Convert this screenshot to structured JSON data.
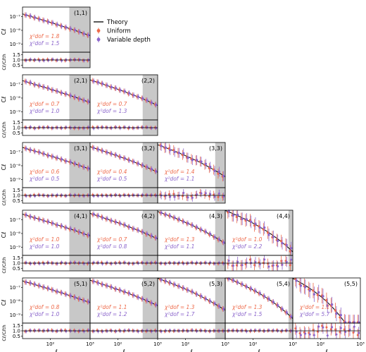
{
  "chart_data": {
    "type": "scatter",
    "x_scale": "log",
    "xlabel": "ℓ",
    "ylabel_top": "Cℓ",
    "ylabel_ratio": "Cℓ/Cℓth",
    "x_ticks": [
      "10²",
      "10³"
    ],
    "y_ticks_top": [
      "10⁻⁷",
      "10⁻⁸",
      "10⁻⁹"
    ],
    "y_ticks_ratio": [
      "1.5",
      "1.0",
      "0.5"
    ],
    "legend": {
      "placement": "top-center",
      "entries": [
        {
          "label": "Theory",
          "color": "#000000",
          "marker": "line"
        },
        {
          "label": "Uniform",
          "color": "#ee6a4a",
          "marker": "circle"
        },
        {
          "label": "Variable depth",
          "color": "#8c66cc",
          "marker": "circle"
        }
      ]
    },
    "colors": {
      "uniform": "#ee6a4a",
      "variable": "#8c66cc",
      "theory": "#000000",
      "mask": "#c8c8c8"
    },
    "panels": [
      {
        "label": "(1,1)",
        "i": 1,
        "j": 1,
        "chi_uniform": "1.8",
        "chi_variable": "1.5"
      },
      {
        "label": "(2,1)",
        "i": 2,
        "j": 1,
        "chi_uniform": "0.7",
        "chi_variable": "1.0"
      },
      {
        "label": "(2,2)",
        "i": 2,
        "j": 2,
        "chi_uniform": "0.7",
        "chi_variable": "1.3"
      },
      {
        "label": "(3,1)",
        "i": 3,
        "j": 1,
        "chi_uniform": "0.6",
        "chi_variable": "0.5"
      },
      {
        "label": "(3,2)",
        "i": 3,
        "j": 2,
        "chi_uniform": "0.4",
        "chi_variable": "0.5"
      },
      {
        "label": "(3,3)",
        "i": 3,
        "j": 3,
        "chi_uniform": "1.4",
        "chi_variable": "1.1"
      },
      {
        "label": "(4,1)",
        "i": 4,
        "j": 1,
        "chi_uniform": "1.0",
        "chi_variable": "1.0"
      },
      {
        "label": "(4,2)",
        "i": 4,
        "j": 2,
        "chi_uniform": "0.7",
        "chi_variable": "0.8"
      },
      {
        "label": "(4,3)",
        "i": 4,
        "j": 3,
        "chi_uniform": "1.3",
        "chi_variable": "1.1"
      },
      {
        "label": "(4,4)",
        "i": 4,
        "j": 4,
        "chi_uniform": "1.0",
        "chi_variable": "2.2"
      },
      {
        "label": "(5,1)",
        "i": 5,
        "j": 1,
        "chi_uniform": "0.8",
        "chi_variable": "1.0"
      },
      {
        "label": "(5,2)",
        "i": 5,
        "j": 2,
        "chi_uniform": "1.1",
        "chi_variable": "1.2"
      },
      {
        "label": "(5,3)",
        "i": 5,
        "j": 3,
        "chi_uniform": "1.3",
        "chi_variable": "1.7"
      },
      {
        "label": "(5,4)",
        "i": 5,
        "j": 4,
        "chi_uniform": "1.3",
        "chi_variable": "1.5"
      },
      {
        "label": "(5,5)",
        "i": 5,
        "j": 5,
        "chi_uniform": "1.1",
        "chi_variable": "5.7"
      }
    ]
  }
}
